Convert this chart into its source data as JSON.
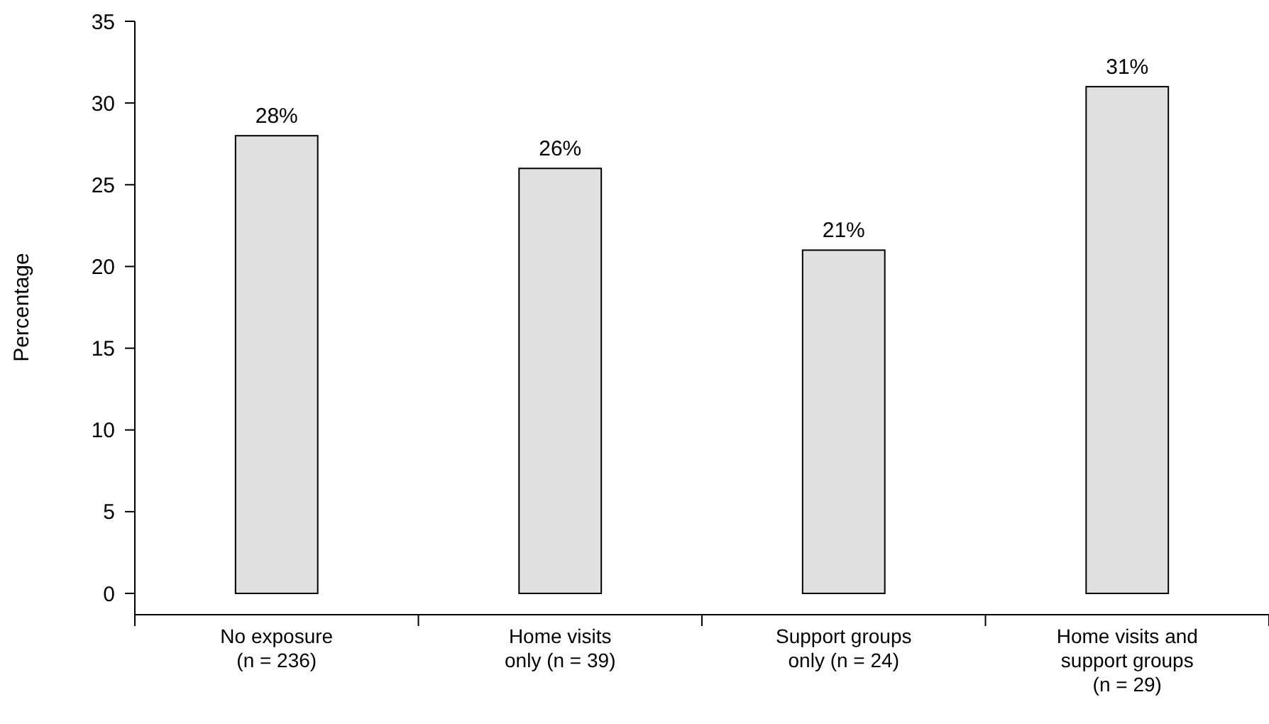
{
  "chart_data": {
    "type": "bar",
    "ylabel": "Percentage",
    "categories": [
      "No exposure\n(n = 236)",
      "Home visits\nonly (n = 39)",
      "Support groups\nonly (n = 24)",
      "Home visits and\nsupport groups\n(n = 29)"
    ],
    "values": [
      28,
      26,
      21,
      31
    ],
    "value_labels": [
      "28%",
      "26%",
      "21%",
      "31%"
    ],
    "color": "#e0e0e0",
    "ylim": [
      0,
      35
    ],
    "yticks": [
      0,
      5,
      10,
      15,
      20,
      25,
      30,
      35
    ],
    "grid": false
  }
}
